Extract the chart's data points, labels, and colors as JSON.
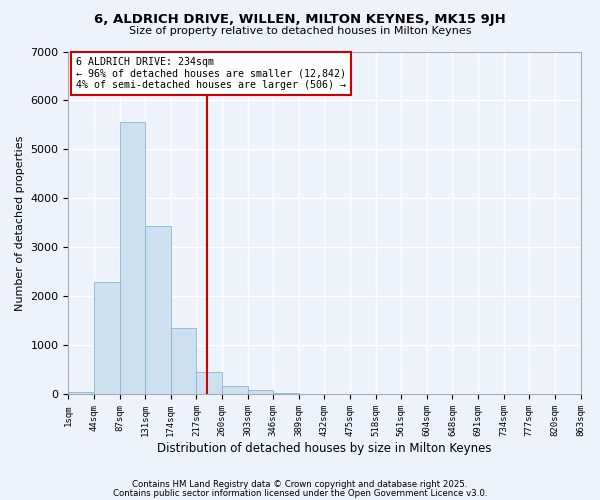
{
  "title": "6, ALDRICH DRIVE, WILLEN, MILTON KEYNES, MK15 9JH",
  "subtitle": "Size of property relative to detached houses in Milton Keynes",
  "xlabel": "Distribution of detached houses by size in Milton Keynes",
  "ylabel": "Number of detached properties",
  "bar_color": "#cce0f0",
  "bar_edge_color": "#88b8d8",
  "background_color": "#eef2fb",
  "grid_color": "#ffffff",
  "annotation_box_color": "#cc0000",
  "vline_color": "#cc0000",
  "bin_labels": [
    "1sqm",
    "44sqm",
    "87sqm",
    "131sqm",
    "174sqm",
    "217sqm",
    "260sqm",
    "303sqm",
    "346sqm",
    "389sqm",
    "432sqm",
    "475sqm",
    "518sqm",
    "561sqm",
    "604sqm",
    "648sqm",
    "691sqm",
    "734sqm",
    "777sqm",
    "820sqm",
    "863sqm"
  ],
  "bar_heights": [
    55,
    2300,
    5560,
    3440,
    1360,
    450,
    170,
    90,
    35,
    12,
    4,
    1,
    0,
    0,
    0,
    0,
    0,
    0,
    0,
    0
  ],
  "ylim": [
    0,
    7000
  ],
  "yticks": [
    0,
    1000,
    2000,
    3000,
    4000,
    5000,
    6000,
    7000
  ],
  "vline_bin": 5.25,
  "annotation_text": "6 ALDRICH DRIVE: 234sqm\n← 96% of detached houses are smaller (12,842)\n4% of semi-detached houses are larger (506) →",
  "footnote1": "Contains HM Land Registry data © Crown copyright and database right 2025.",
  "footnote2": "Contains public sector information licensed under the Open Government Licence v3.0."
}
